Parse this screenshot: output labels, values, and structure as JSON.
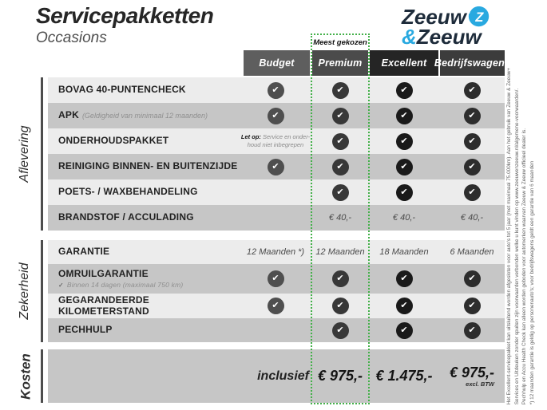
{
  "page": {
    "title": "Servicepakketten",
    "subtitle": "Occasions"
  },
  "logo": {
    "word1": "Zeeuw",
    "amp": "&",
    "word2": "Zeeuw",
    "navy": "#1d2b3a",
    "blue": "#29a9e0"
  },
  "most_chosen_badge": "Meest gekozen",
  "accent_green": "#43b049",
  "glyphs": {
    "check": "✔",
    "subcheck": "✓"
  },
  "columns": [
    {
      "label": "Budget",
      "header_color": "#5e5e5e",
      "check_color": "#4f4f4f"
    },
    {
      "label": "Premium",
      "header_color": "#4b4b4b",
      "check_color": "#383838",
      "highlighted": true
    },
    {
      "label": "Excellent",
      "header_color": "#252525",
      "check_color": "#1a1a1a"
    },
    {
      "label": "Bedrijfswagens",
      "header_color": "#3c3c3c",
      "check_color": "#2d2d2d"
    }
  ],
  "sections": [
    {
      "name": "Aflevering",
      "rows": [
        {
          "label": "BOVAG 40-PUNTENCHECK",
          "cells": [
            {
              "type": "check"
            },
            {
              "type": "check"
            },
            {
              "type": "check"
            },
            {
              "type": "check"
            }
          ]
        },
        {
          "label": "APK",
          "sublabel": "(Geldigheid van minimaal 12 maanden)",
          "sublabel_style": "inline",
          "cells": [
            {
              "type": "check"
            },
            {
              "type": "check"
            },
            {
              "type": "check"
            },
            {
              "type": "check"
            }
          ]
        },
        {
          "label": "ONDERHOUDSPAKKET",
          "cells": [
            {
              "type": "note",
              "prefix": "Let op:",
              "line1": "Service en onder-",
              "line2": "houd niet inbegrepen"
            },
            {
              "type": "check"
            },
            {
              "type": "check"
            },
            {
              "type": "check"
            }
          ]
        },
        {
          "label": "REINIGING BINNEN- EN BUITENZIJDE",
          "cells": [
            {
              "type": "check"
            },
            {
              "type": "check"
            },
            {
              "type": "check"
            },
            {
              "type": "check"
            }
          ]
        },
        {
          "label": "POETS- / WAXBEHANDELING",
          "cells": [
            {
              "type": "empty"
            },
            {
              "type": "check"
            },
            {
              "type": "check"
            },
            {
              "type": "check"
            }
          ]
        },
        {
          "label": "BRANDSTOF / ACCULADING",
          "cells": [
            {
              "type": "empty"
            },
            {
              "type": "text",
              "value": "€ 40,-"
            },
            {
              "type": "text",
              "value": "€ 40,-"
            },
            {
              "type": "text",
              "value": "€ 40,-"
            }
          ]
        }
      ]
    },
    {
      "name": "Zekerheid",
      "rows": [
        {
          "label": "GARANTIE",
          "cells": [
            {
              "type": "text",
              "value": "12 Maanden *)"
            },
            {
              "type": "text",
              "value": "12 Maanden"
            },
            {
              "type": "text",
              "value": "18 Maanden"
            },
            {
              "type": "text",
              "value": "6 Maanden"
            }
          ]
        },
        {
          "label": "OMRUILGARANTIE",
          "sublabel": "Binnen 14 dagen (maximaal 750 km)",
          "sublabel_style": "block",
          "sublabel_check": true,
          "cells": [
            {
              "type": "check"
            },
            {
              "type": "check"
            },
            {
              "type": "check"
            },
            {
              "type": "check"
            }
          ]
        },
        {
          "label": "GEGARANDEERDE KILOMETERSTAND",
          "cells": [
            {
              "type": "check"
            },
            {
              "type": "check"
            },
            {
              "type": "check"
            },
            {
              "type": "check"
            }
          ]
        },
        {
          "label": "PECHHULP",
          "cells": [
            {
              "type": "empty"
            },
            {
              "type": "check"
            },
            {
              "type": "check"
            },
            {
              "type": "check"
            }
          ]
        }
      ]
    },
    {
      "name": "Kosten",
      "rows": [
        {
          "label": "",
          "cells": [
            {
              "type": "price_label",
              "value": "inclusief"
            },
            {
              "type": "price",
              "value": "€ 975,-"
            },
            {
              "type": "price",
              "value": "€ 1.475,-"
            },
            {
              "type": "price",
              "value": "€ 975,-",
              "note": "excl. BTW"
            }
          ]
        }
      ]
    }
  ],
  "fineprint": [
    "Het Excellent-servicepakket kan uitsluitend worden afgesloten voor auto's tot 5 jaar (met maximaal 75.000km). Aan het gebruik van Zeeuw & Zeeuw+",
    "Services en Uitdeuken zonder spuiten zijn voorwaarden verbonden welke u kunt vinden op www.zeeuwenzeeuw.nl/algemene-voorwaarden/.",
    "Pechhulp en Accu Health Check kan alleen worden geboden voor automerken waarvan Zeeuw & Zeeuw officieel dealer is.",
    "*) 12 maanden garantie is geldig op personenauto's; voor bedrijfswagens geldt een garantie van 6 maanden"
  ]
}
